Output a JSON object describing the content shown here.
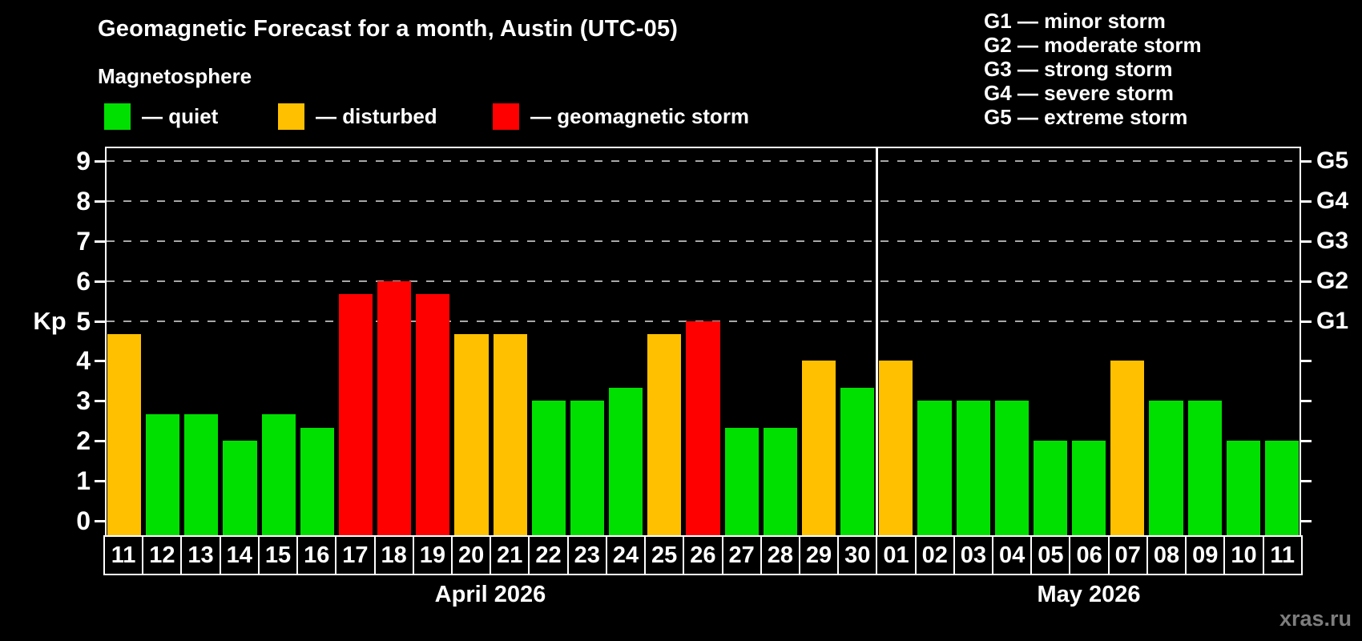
{
  "title": "Geomagnetic Forecast for a month, Austin (UTC-05)",
  "subtitle": "Magnetosphere",
  "watermark": "xras.ru",
  "legend": {
    "items": [
      {
        "name": "quiet",
        "label": "— quiet",
        "color": "#00E000"
      },
      {
        "name": "disturbed",
        "label": "— disturbed",
        "color": "#FFC000"
      },
      {
        "name": "storm",
        "label": "— geomagnetic storm",
        "color": "#FF0000"
      }
    ]
  },
  "g_legend": {
    "lines": [
      "G1 — minor storm",
      "G2 — moderate storm",
      "G3 — strong storm",
      "G4 — severe storm",
      "G5 — extreme storm"
    ]
  },
  "axis": {
    "kp_label": "Kp",
    "left_ticks": [
      "0",
      "1",
      "2",
      "3",
      "4",
      "5",
      "6",
      "7",
      "8",
      "9"
    ],
    "right_labels": [
      {
        "kp": 5,
        "label": "G1"
      },
      {
        "kp": 6,
        "label": "G2"
      },
      {
        "kp": 7,
        "label": "G3"
      },
      {
        "kp": 8,
        "label": "G4"
      },
      {
        "kp": 9,
        "label": "G5"
      }
    ]
  },
  "chart_data": {
    "type": "bar",
    "title": "Geomagnetic Forecast for a month, Austin (UTC-05)",
    "ylabel": "Kp",
    "ylim": [
      0,
      9
    ],
    "grid_kp": [
      5,
      6,
      7,
      8,
      9
    ],
    "legend_position": "top-left",
    "status_colors": {
      "quiet": "#00E000",
      "disturbed": "#FFC000",
      "storm": "#FF0000"
    },
    "months": [
      {
        "label": "April 2026",
        "days": [
          {
            "date": "11",
            "kp": 4.67,
            "status": "disturbed"
          },
          {
            "date": "12",
            "kp": 2.67,
            "status": "quiet"
          },
          {
            "date": "13",
            "kp": 2.67,
            "status": "quiet"
          },
          {
            "date": "14",
            "kp": 2.0,
            "status": "quiet"
          },
          {
            "date": "15",
            "kp": 2.67,
            "status": "quiet"
          },
          {
            "date": "16",
            "kp": 2.33,
            "status": "quiet"
          },
          {
            "date": "17",
            "kp": 5.67,
            "status": "storm"
          },
          {
            "date": "18",
            "kp": 6.0,
            "status": "storm"
          },
          {
            "date": "19",
            "kp": 5.67,
            "status": "storm"
          },
          {
            "date": "20",
            "kp": 4.67,
            "status": "disturbed"
          },
          {
            "date": "21",
            "kp": 4.67,
            "status": "disturbed"
          },
          {
            "date": "22",
            "kp": 3.0,
            "status": "quiet"
          },
          {
            "date": "23",
            "kp": 3.0,
            "status": "quiet"
          },
          {
            "date": "24",
            "kp": 3.33,
            "status": "quiet"
          },
          {
            "date": "25",
            "kp": 4.67,
            "status": "disturbed"
          },
          {
            "date": "26",
            "kp": 5.0,
            "status": "storm"
          },
          {
            "date": "27",
            "kp": 2.33,
            "status": "quiet"
          },
          {
            "date": "28",
            "kp": 2.33,
            "status": "quiet"
          },
          {
            "date": "29",
            "kp": 4.0,
            "status": "disturbed"
          },
          {
            "date": "30",
            "kp": 3.33,
            "status": "quiet"
          }
        ]
      },
      {
        "label": "May 2026",
        "days": [
          {
            "date": "01",
            "kp": 4.0,
            "status": "disturbed"
          },
          {
            "date": "02",
            "kp": 3.0,
            "status": "quiet"
          },
          {
            "date": "03",
            "kp": 3.0,
            "status": "quiet"
          },
          {
            "date": "04",
            "kp": 3.0,
            "status": "quiet"
          },
          {
            "date": "05",
            "kp": 2.0,
            "status": "quiet"
          },
          {
            "date": "06",
            "kp": 2.0,
            "status": "quiet"
          },
          {
            "date": "07",
            "kp": 4.0,
            "status": "disturbed"
          },
          {
            "date": "08",
            "kp": 3.0,
            "status": "quiet"
          },
          {
            "date": "09",
            "kp": 3.0,
            "status": "quiet"
          },
          {
            "date": "10",
            "kp": 2.0,
            "status": "quiet"
          },
          {
            "date": "11",
            "kp": 2.0,
            "status": "quiet"
          }
        ]
      }
    ]
  }
}
